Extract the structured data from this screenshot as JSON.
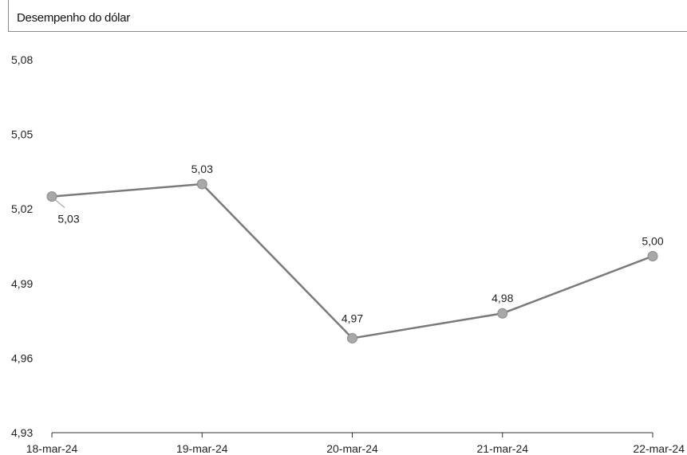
{
  "header": {
    "title": "Desempenho do dólar"
  },
  "chart_data": {
    "type": "line",
    "title": "Desempenho do dólar",
    "xlabel": "",
    "ylabel": "",
    "categories": [
      "18-mar-24",
      "19-mar-24",
      "20-mar-24",
      "21-mar-24",
      "22-mar-24"
    ],
    "series": [
      {
        "values": [
          5.025,
          5.03,
          4.968,
          4.978,
          5.001
        ],
        "data_labels": [
          "5,03",
          "5,03",
          "4,97",
          "4,98",
          "5,00"
        ]
      }
    ],
    "y_ticks": [
      "5,08",
      "5,05",
      "5,02",
      "4,99",
      "4,96",
      "4,93"
    ],
    "ylim": [
      4.93,
      5.08
    ],
    "grid": false,
    "line_color": "#7a7a7a",
    "marker_color": "#a8a8a8"
  }
}
